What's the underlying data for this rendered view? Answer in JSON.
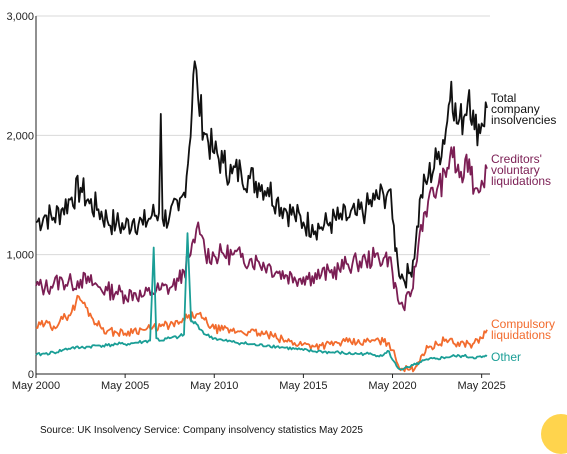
{
  "source_text": "Source: UK Insolvency Service: Company insolvency statistics May 2025",
  "colors": {
    "total": "#111111",
    "cvl": "#7B1E54",
    "compulsory": "#F26B2D",
    "other": "#1A9E96",
    "grid": "#d9d9d9",
    "axis": "#222222",
    "corner_dot": "#FFD44D"
  },
  "chart_data": {
    "type": "line",
    "title": "",
    "xlabel": "",
    "ylabel": "",
    "ylim": [
      0,
      3000
    ],
    "xlim": [
      "2000-05",
      "2025-05"
    ],
    "y_ticks": [
      "0",
      "1,000",
      "2,000",
      "3,000"
    ],
    "y_tick_values": [
      0,
      1000,
      2000,
      3000
    ],
    "x_ticks": [
      "May 2000",
      "May 2005",
      "May 2010",
      "May 2015",
      "May 2020",
      "May 2025"
    ],
    "x_tick_values": [
      2000,
      2005,
      2010,
      2015,
      2020,
      2025
    ],
    "grid": "horizontal",
    "legend": "series labels at right end of lines",
    "series": [
      {
        "name": "Total company insolvencies",
        "label_lines": [
          "Total",
          "company",
          "insolvencies"
        ],
        "color_key": "total",
        "points": [
          [
            2000.0,
            1270
          ],
          [
            2000.5,
            1330
          ],
          [
            2001.0,
            1310
          ],
          [
            2001.5,
            1390
          ],
          [
            2002.0,
            1480
          ],
          [
            2002.5,
            1560
          ],
          [
            2003.0,
            1430
          ],
          [
            2003.5,
            1380
          ],
          [
            2004.0,
            1290
          ],
          [
            2004.5,
            1260
          ],
          [
            2005.0,
            1230
          ],
          [
            2005.5,
            1300
          ],
          [
            2006.0,
            1250
          ],
          [
            2006.5,
            1330
          ],
          [
            2006.9,
            1350
          ],
          [
            2007.0,
            2180
          ],
          [
            2007.1,
            1300
          ],
          [
            2007.5,
            1330
          ],
          [
            2008.0,
            1370
          ],
          [
            2008.3,
            1520
          ],
          [
            2008.6,
            1900
          ],
          [
            2008.9,
            2620
          ],
          [
            2009.1,
            2300
          ],
          [
            2009.5,
            2010
          ],
          [
            2010.0,
            1850
          ],
          [
            2010.5,
            1770
          ],
          [
            2011.0,
            1680
          ],
          [
            2011.5,
            1700
          ],
          [
            2012.0,
            1640
          ],
          [
            2012.5,
            1600
          ],
          [
            2013.0,
            1560
          ],
          [
            2013.5,
            1460
          ],
          [
            2014.0,
            1380
          ],
          [
            2014.5,
            1330
          ],
          [
            2015.0,
            1270
          ],
          [
            2015.5,
            1250
          ],
          [
            2016.0,
            1230
          ],
          [
            2016.5,
            1270
          ],
          [
            2017.0,
            1300
          ],
          [
            2017.5,
            1310
          ],
          [
            2018.0,
            1330
          ],
          [
            2018.5,
            1380
          ],
          [
            2019.0,
            1460
          ],
          [
            2019.5,
            1500
          ],
          [
            2019.8,
            1540
          ],
          [
            2020.0,
            1300
          ],
          [
            2020.3,
            920
          ],
          [
            2020.6,
            800
          ],
          [
            2021.0,
            850
          ],
          [
            2021.3,
            1100
          ],
          [
            2021.6,
            1500
          ],
          [
            2022.0,
            1650
          ],
          [
            2022.5,
            1800
          ],
          [
            2023.0,
            2050
          ],
          [
            2023.3,
            2450
          ],
          [
            2023.6,
            2100
          ],
          [
            2024.0,
            2150
          ],
          [
            2024.3,
            2380
          ],
          [
            2024.6,
            2050
          ],
          [
            2025.0,
            2100
          ],
          [
            2025.3,
            2230
          ]
        ]
      },
      {
        "name": "Creditors' voluntary liquidations",
        "label_lines": [
          "Creditors'",
          "voluntary",
          "liquidations"
        ],
        "color_key": "cvl",
        "points": [
          [
            2000.0,
            740
          ],
          [
            2000.5,
            720
          ],
          [
            2001.0,
            760
          ],
          [
            2001.5,
            780
          ],
          [
            2002.0,
            760
          ],
          [
            2002.5,
            790
          ],
          [
            2003.0,
            770
          ],
          [
            2003.5,
            730
          ],
          [
            2004.0,
            700
          ],
          [
            2004.5,
            690
          ],
          [
            2005.0,
            660
          ],
          [
            2005.5,
            680
          ],
          [
            2006.0,
            650
          ],
          [
            2006.5,
            690
          ],
          [
            2007.0,
            710
          ],
          [
            2007.5,
            720
          ],
          [
            2008.0,
            780
          ],
          [
            2008.3,
            860
          ],
          [
            2008.6,
            980
          ],
          [
            2008.9,
            1100
          ],
          [
            2009.1,
            1270
          ],
          [
            2009.3,
            1160
          ],
          [
            2009.5,
            1010
          ],
          [
            2010.0,
            990
          ],
          [
            2010.5,
            1010
          ],
          [
            2011.0,
            1000
          ],
          [
            2011.5,
            980
          ],
          [
            2012.0,
            960
          ],
          [
            2012.5,
            940
          ],
          [
            2013.0,
            910
          ],
          [
            2013.5,
            860
          ],
          [
            2014.0,
            830
          ],
          [
            2014.5,
            810
          ],
          [
            2015.0,
            810
          ],
          [
            2015.5,
            820
          ],
          [
            2016.0,
            830
          ],
          [
            2016.5,
            850
          ],
          [
            2017.0,
            880
          ],
          [
            2017.5,
            920
          ],
          [
            2018.0,
            930
          ],
          [
            2018.5,
            950
          ],
          [
            2019.0,
            980
          ],
          [
            2019.5,
            970
          ],
          [
            2019.8,
            980
          ],
          [
            2020.0,
            850
          ],
          [
            2020.3,
            620
          ],
          [
            2020.6,
            560
          ],
          [
            2021.0,
            650
          ],
          [
            2021.3,
            900
          ],
          [
            2021.6,
            1250
          ],
          [
            2022.0,
            1450
          ],
          [
            2022.5,
            1550
          ],
          [
            2023.0,
            1650
          ],
          [
            2023.3,
            1900
          ],
          [
            2023.6,
            1700
          ],
          [
            2024.0,
            1650
          ],
          [
            2024.3,
            1800
          ],
          [
            2024.6,
            1550
          ],
          [
            2025.0,
            1620
          ],
          [
            2025.3,
            1720
          ]
        ]
      },
      {
        "name": "Compulsory liquidations",
        "label_lines": [
          "Compulsory",
          "liquidations"
        ],
        "color_key": "compulsory",
        "points": [
          [
            2000.0,
            390
          ],
          [
            2000.5,
            420
          ],
          [
            2001.0,
            400
          ],
          [
            2001.5,
            460
          ],
          [
            2002.0,
            520
          ],
          [
            2002.4,
            650
          ],
          [
            2002.8,
            560
          ],
          [
            2003.2,
            460
          ],
          [
            2003.6,
            400
          ],
          [
            2004.0,
            360
          ],
          [
            2004.5,
            350
          ],
          [
            2005.0,
            340
          ],
          [
            2005.5,
            370
          ],
          [
            2006.0,
            370
          ],
          [
            2006.5,
            380
          ],
          [
            2007.0,
            400
          ],
          [
            2007.5,
            410
          ],
          [
            2008.0,
            420
          ],
          [
            2008.5,
            470
          ],
          [
            2009.0,
            500
          ],
          [
            2009.3,
            470
          ],
          [
            2009.6,
            430
          ],
          [
            2010.0,
            380
          ],
          [
            2010.5,
            370
          ],
          [
            2011.0,
            360
          ],
          [
            2011.5,
            360
          ],
          [
            2012.0,
            350
          ],
          [
            2012.5,
            340
          ],
          [
            2013.0,
            330
          ],
          [
            2013.5,
            300
          ],
          [
            2014.0,
            280
          ],
          [
            2014.5,
            260
          ],
          [
            2015.0,
            250
          ],
          [
            2015.5,
            240
          ],
          [
            2016.0,
            240
          ],
          [
            2016.5,
            250
          ],
          [
            2017.0,
            260
          ],
          [
            2017.5,
            270
          ],
          [
            2018.0,
            260
          ],
          [
            2018.5,
            270
          ],
          [
            2019.0,
            280
          ],
          [
            2019.5,
            270
          ],
          [
            2019.8,
            260
          ],
          [
            2020.0,
            200
          ],
          [
            2020.3,
            80
          ],
          [
            2020.6,
            40
          ],
          [
            2021.0,
            40
          ],
          [
            2021.3,
            60
          ],
          [
            2021.6,
            150
          ],
          [
            2022.0,
            220
          ],
          [
            2022.5,
            250
          ],
          [
            2023.0,
            290
          ],
          [
            2023.5,
            250
          ],
          [
            2024.0,
            260
          ],
          [
            2024.5,
            250
          ],
          [
            2025.0,
            300
          ],
          [
            2025.3,
            370
          ]
        ]
      },
      {
        "name": "Other",
        "label_lines": [
          "Other"
        ],
        "color_key": "other",
        "points": [
          [
            2000.0,
            160
          ],
          [
            2000.5,
            170
          ],
          [
            2001.0,
            180
          ],
          [
            2001.5,
            200
          ],
          [
            2002.0,
            220
          ],
          [
            2002.5,
            220
          ],
          [
            2003.0,
            230
          ],
          [
            2003.5,
            240
          ],
          [
            2004.0,
            240
          ],
          [
            2004.5,
            250
          ],
          [
            2005.0,
            250
          ],
          [
            2005.5,
            260
          ],
          [
            2006.0,
            270
          ],
          [
            2006.4,
            280
          ],
          [
            2006.6,
            1060
          ],
          [
            2006.75,
            300
          ],
          [
            2007.0,
            280
          ],
          [
            2007.5,
            300
          ],
          [
            2008.0,
            310
          ],
          [
            2008.3,
            330
          ],
          [
            2008.5,
            1180
          ],
          [
            2008.7,
            440
          ],
          [
            2009.0,
            420
          ],
          [
            2009.5,
            330
          ],
          [
            2010.0,
            300
          ],
          [
            2010.5,
            280
          ],
          [
            2011.0,
            270
          ],
          [
            2011.5,
            260
          ],
          [
            2012.0,
            250
          ],
          [
            2012.5,
            240
          ],
          [
            2013.0,
            240
          ],
          [
            2013.5,
            230
          ],
          [
            2014.0,
            220
          ],
          [
            2014.5,
            210
          ],
          [
            2015.0,
            200
          ],
          [
            2015.5,
            190
          ],
          [
            2016.0,
            190
          ],
          [
            2016.5,
            180
          ],
          [
            2017.0,
            180
          ],
          [
            2017.5,
            170
          ],
          [
            2018.0,
            170
          ],
          [
            2018.5,
            170
          ],
          [
            2019.0,
            160
          ],
          [
            2019.5,
            160
          ],
          [
            2019.8,
            190
          ],
          [
            2020.0,
            120
          ],
          [
            2020.3,
            50
          ],
          [
            2020.6,
            40
          ],
          [
            2021.0,
            60
          ],
          [
            2021.3,
            80
          ],
          [
            2021.6,
            100
          ],
          [
            2022.0,
            120
          ],
          [
            2022.5,
            130
          ],
          [
            2023.0,
            140
          ],
          [
            2023.5,
            150
          ],
          [
            2024.0,
            150
          ],
          [
            2024.5,
            140
          ],
          [
            2025.0,
            140
          ],
          [
            2025.3,
            150
          ]
        ]
      }
    ]
  }
}
